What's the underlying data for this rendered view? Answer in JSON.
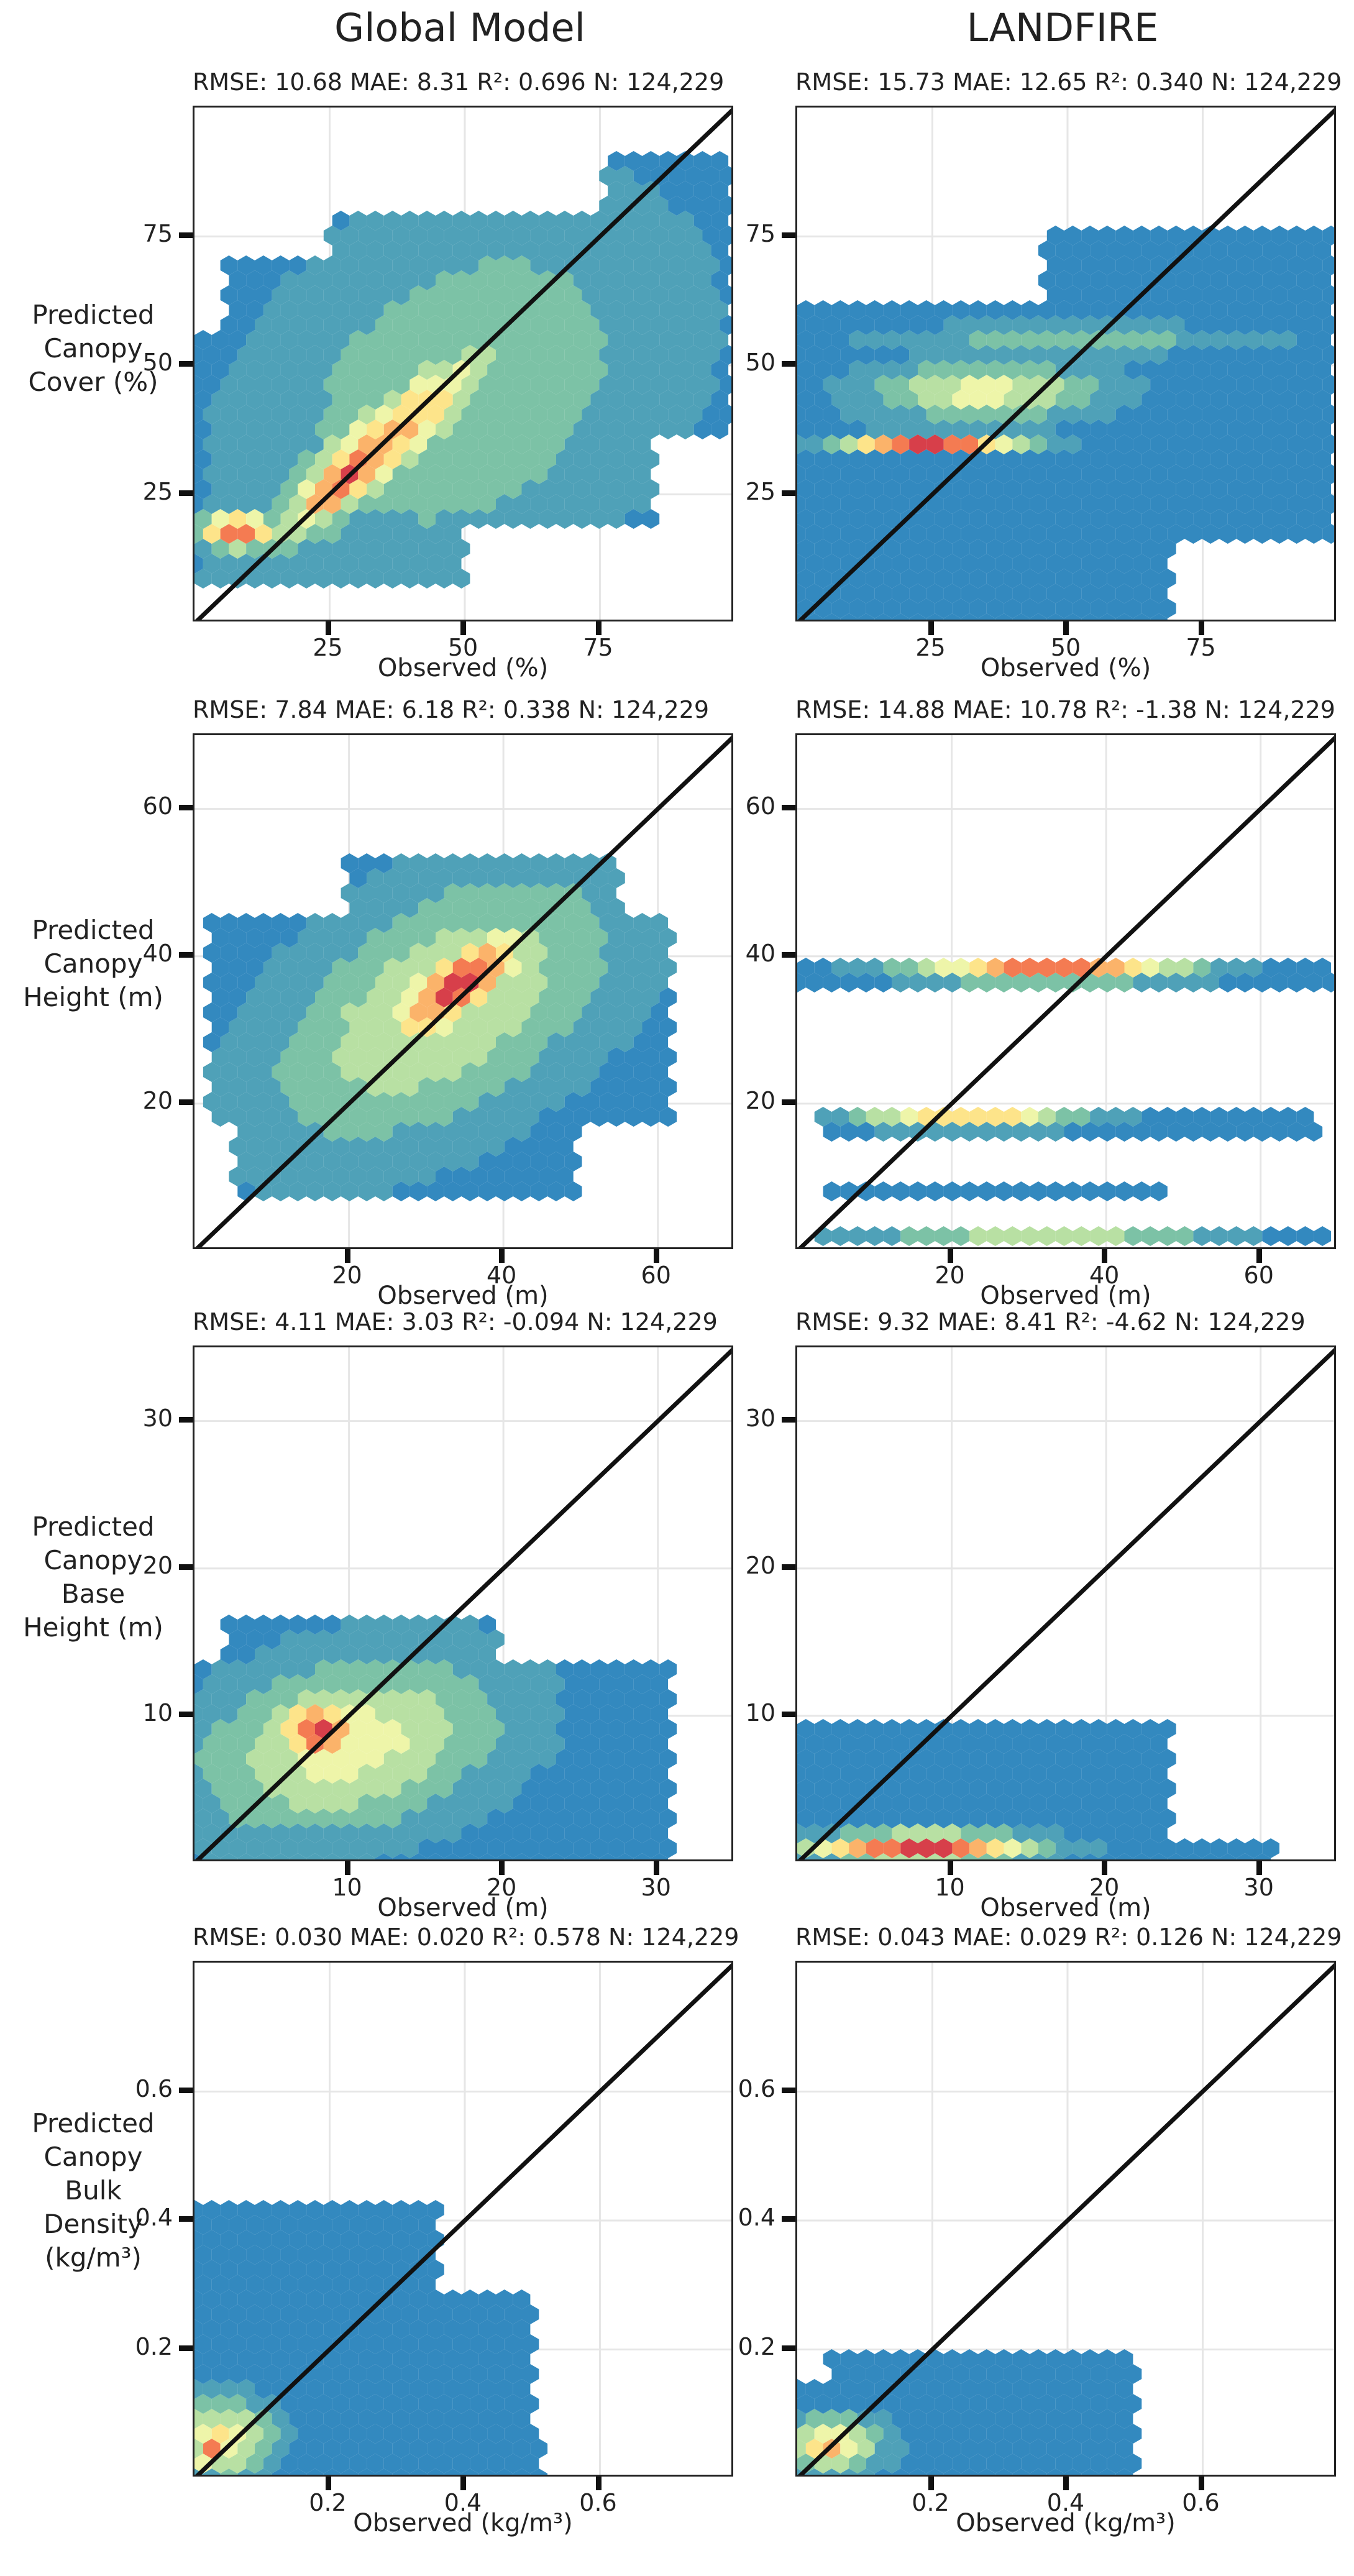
{
  "column_titles": [
    "Global Model",
    "LANDFIRE"
  ],
  "row_labels": [
    [
      "Predicted",
      "Canopy",
      "Cover (%)"
    ],
    [
      "Predicted",
      "Canopy",
      "Height (m)"
    ],
    [
      "Predicted",
      "Canopy",
      "Base",
      "Height (m)"
    ],
    [
      "Predicted",
      "Canopy",
      "Bulk",
      "Density",
      "(kg/m³)"
    ]
  ],
  "colors": {
    "low": "#3389bf",
    "ramp": [
      "#3389bf",
      "#4fa1b8",
      "#7cc2a6",
      "#b8e0a3",
      "#eef5a9",
      "#fde48a",
      "#fbb36a",
      "#f47b52",
      "#d73f4a"
    ],
    "line": "#111111",
    "grid": "#e6e6e6"
  },
  "chart_data": [
    {
      "type": "hexbin",
      "model": "Global Model",
      "variable": "Canopy Cover",
      "stats": "RMSE: 10.68 MAE: 8.31 R²: 0.696 N: 124,229",
      "xlabel": "Observed (%)",
      "xlim": [
        0,
        100
      ],
      "ylim": [
        0,
        100
      ],
      "xticks": [
        25,
        50,
        75
      ],
      "yticks": [
        25,
        50,
        75
      ],
      "xtick_labels": [
        "25",
        "50",
        "75"
      ],
      "ytick_labels": [
        "25",
        "50",
        "75"
      ],
      "blobs": [
        {
          "cx": 50,
          "cy": 45,
          "sx": 30,
          "sy": 22,
          "rot": 40,
          "peak": 0.3
        },
        {
          "cx": 35,
          "cy": 35,
          "sx": 20,
          "sy": 5,
          "rot": 42,
          "peak": 0.75
        },
        {
          "cx": 28,
          "cy": 28,
          "sx": 9,
          "sy": 3,
          "rot": 42,
          "peak": 1.0
        },
        {
          "cx": 8,
          "cy": 18,
          "sx": 5,
          "sy": 2.5,
          "rot": 0,
          "peak": 0.95
        }
      ],
      "extent": [
        {
          "y0": 8,
          "y1": 20,
          "x0": 0,
          "x1": 50
        },
        {
          "y0": 20,
          "y1": 35,
          "x0": 0,
          "x1": 85
        },
        {
          "y0": 35,
          "y1": 55,
          "x0": 0,
          "x1": 100
        },
        {
          "y0": 55,
          "y1": 70,
          "x0": 5,
          "x1": 100
        },
        {
          "y0": 70,
          "y1": 80,
          "x0": 25,
          "x1": 100
        },
        {
          "y0": 80,
          "y1": 90,
          "x0": 75,
          "x1": 100
        }
      ]
    },
    {
      "type": "hexbin",
      "model": "LANDFIRE",
      "variable": "Canopy Cover",
      "stats": "RMSE: 15.73 MAE: 12.65 R²: 0.340 N: 124,229",
      "xlabel": "Observed (%)",
      "xlim": [
        0,
        100
      ],
      "ylim": [
        0,
        100
      ],
      "xticks": [
        25,
        50,
        75
      ],
      "yticks": [
        25,
        50,
        75
      ],
      "xtick_labels": [
        "25",
        "50",
        "75"
      ],
      "ytick_labels": [
        "25",
        "50",
        "75"
      ],
      "blobs": [
        {
          "cx": 25,
          "cy": 35,
          "sx": 12,
          "sy": 1.2,
          "rot": 0,
          "peak": 1.0
        },
        {
          "cx": 35,
          "cy": 45,
          "sx": 15,
          "sy": 4,
          "rot": 0,
          "peak": 0.5
        },
        {
          "cx": 50,
          "cy": 55,
          "sx": 25,
          "sy": 2,
          "rot": 0,
          "peak": 0.25
        }
      ],
      "extent": [
        {
          "y0": 0,
          "y1": 15,
          "x0": 0,
          "x1": 70
        },
        {
          "y0": 15,
          "y1": 40,
          "x0": 0,
          "x1": 100
        },
        {
          "y0": 40,
          "y1": 62,
          "x0": 0,
          "x1": 100
        },
        {
          "y0": 62,
          "y1": 76,
          "x0": 45,
          "x1": 100
        }
      ]
    },
    {
      "type": "hexbin",
      "model": "Global Model",
      "variable": "Canopy Height",
      "stats": "RMSE: 7.84 MAE: 6.18 R²: 0.338 N: 124,229",
      "xlabel": "Observed (m)",
      "xlim": [
        0,
        70
      ],
      "ylim": [
        0,
        70
      ],
      "xticks": [
        20,
        40,
        60
      ],
      "yticks": [
        20,
        40,
        60
      ],
      "xtick_labels": [
        "20",
        "40",
        "60"
      ],
      "ytick_labels": [
        "20",
        "40",
        "60"
      ],
      "blobs": [
        {
          "cx": 32,
          "cy": 33,
          "sx": 18,
          "sy": 10,
          "rot": 35,
          "peak": 0.45
        },
        {
          "cx": 34,
          "cy": 36,
          "sx": 8,
          "sy": 3,
          "rot": 40,
          "peak": 1.0
        }
      ],
      "extent": [
        {
          "y0": 8,
          "y1": 18,
          "x0": 5,
          "x1": 50
        },
        {
          "y0": 18,
          "y1": 45,
          "x0": 2,
          "x1": 62
        },
        {
          "y0": 45,
          "y1": 54,
          "x0": 20,
          "x1": 55
        }
      ]
    },
    {
      "type": "hexbin",
      "model": "LANDFIRE",
      "variable": "Canopy Height",
      "stats": "RMSE: 14.88 MAE: 10.78 R²: -1.38 N: 124,229",
      "xlabel": "Observed (m)",
      "xlim": [
        0,
        70
      ],
      "ylim": [
        0,
        70
      ],
      "xticks": [
        20,
        40,
        60
      ],
      "yticks": [
        20,
        40,
        60
      ],
      "xtick_labels": [
        "20",
        "40",
        "60"
      ],
      "ytick_labels": [
        "20",
        "40",
        "60"
      ],
      "blobs": [
        {
          "cx": 33,
          "cy": 38,
          "sx": 12,
          "sy": 1,
          "rot": 0,
          "peak": 1.0
        },
        {
          "cx": 22,
          "cy": 18,
          "sx": 10,
          "sy": 1,
          "rot": 0,
          "peak": 0.7
        },
        {
          "cx": 32,
          "cy": 2,
          "sx": 15,
          "sy": 1,
          "rot": 0,
          "peak": 0.4
        }
      ],
      "extent": [
        {
          "y0": 35,
          "y1": 40,
          "x0": 0,
          "x1": 70
        },
        {
          "y0": 15,
          "y1": 19,
          "x0": 3,
          "x1": 68
        },
        {
          "y0": 7,
          "y1": 9,
          "x0": 3,
          "x1": 48
        },
        {
          "y0": 1,
          "y1": 3,
          "x0": 3,
          "x1": 70
        }
      ]
    },
    {
      "type": "hexbin",
      "model": "Global Model",
      "variable": "Canopy Base Height",
      "stats": "RMSE: 4.11 MAE: 3.03 R²: -0.094 N: 124,229",
      "xlabel": "Observed (m)",
      "xlim": [
        0,
        35
      ],
      "ylim": [
        0,
        35
      ],
      "xticks": [
        10,
        20,
        30
      ],
      "yticks": [
        10,
        20,
        30
      ],
      "xtick_labels": [
        "10",
        "20",
        "30"
      ],
      "ytick_labels": [
        "10",
        "20",
        "30"
      ],
      "blobs": [
        {
          "cx": 10,
          "cy": 8,
          "sx": 7,
          "sy": 4,
          "rot": 15,
          "peak": 0.5
        },
        {
          "cx": 8,
          "cy": 9,
          "sx": 2,
          "sy": 1.5,
          "rot": 0,
          "peak": 1.0
        }
      ],
      "extent": [
        {
          "y0": 0,
          "y1": 14,
          "x0": 0,
          "x1": 31
        },
        {
          "y0": 14,
          "y1": 17,
          "x0": 2,
          "x1": 20
        }
      ]
    },
    {
      "type": "hexbin",
      "model": "LANDFIRE",
      "variable": "Canopy Base Height",
      "stats": "RMSE: 9.32 MAE: 8.41 R²: -4.62 N: 124,229",
      "xlabel": "Observed (m)",
      "xlim": [
        0,
        35
      ],
      "ylim": [
        0,
        35
      ],
      "xticks": [
        10,
        20,
        30
      ],
      "yticks": [
        10,
        20,
        30
      ],
      "xtick_labels": [
        "10",
        "20",
        "30"
      ],
      "ytick_labels": [
        "10",
        "20",
        "30"
      ],
      "blobs": [
        {
          "cx": 8,
          "cy": 1,
          "sx": 5,
          "sy": 0.7,
          "rot": 0,
          "peak": 1.0
        }
      ],
      "extent": [
        {
          "y0": 0,
          "y1": 2,
          "x0": 0,
          "x1": 31
        },
        {
          "y0": 2,
          "y1": 10,
          "x0": 0,
          "x1": 24
        }
      ]
    },
    {
      "type": "hexbin",
      "model": "Global Model",
      "variable": "Canopy Bulk Density",
      "stats": "RMSE: 0.030 MAE: 0.020 R²: 0.578 N: 124,229",
      "xlabel": "Observed (kg/m³)",
      "xlim": [
        0,
        0.8
      ],
      "ylim": [
        0,
        0.8
      ],
      "xticks": [
        0.2,
        0.4,
        0.6
      ],
      "yticks": [
        0.2,
        0.4,
        0.6
      ],
      "xtick_labels": [
        "0.2",
        "0.4",
        "0.6"
      ],
      "ytick_labels": [
        "0.2",
        "0.4",
        "0.6"
      ],
      "blobs": [
        {
          "cx": 0.04,
          "cy": 0.06,
          "sx": 0.05,
          "sy": 0.04,
          "rot": 0,
          "peak": 0.6
        },
        {
          "cx": 0.02,
          "cy": 0.04,
          "sx": 0.015,
          "sy": 0.015,
          "rot": 0,
          "peak": 1.0
        }
      ],
      "extent": [
        {
          "y0": 0,
          "y1": 0.08,
          "x0": 0,
          "x1": 0.52
        },
        {
          "y0": 0.08,
          "y1": 0.3,
          "x0": 0,
          "x1": 0.5
        },
        {
          "y0": 0.3,
          "y1": 0.42,
          "x0": 0,
          "x1": 0.36
        }
      ]
    },
    {
      "type": "hexbin",
      "model": "LANDFIRE",
      "variable": "Canopy Bulk Density",
      "stats": "RMSE: 0.043 MAE: 0.029 R²: 0.126 N: 124,229",
      "xlabel": "Observed (kg/m³)",
      "xlim": [
        0,
        0.8
      ],
      "ylim": [
        0,
        0.8
      ],
      "xticks": [
        0.2,
        0.4,
        0.6
      ],
      "yticks": [
        0.2,
        0.4,
        0.6
      ],
      "xtick_labels": [
        "0.2",
        "0.4",
        "0.6"
      ],
      "ytick_labels": [
        "0.2",
        "0.4",
        "0.6"
      ],
      "blobs": [
        {
          "cx": 0.05,
          "cy": 0.05,
          "sx": 0.05,
          "sy": 0.03,
          "rot": 0,
          "peak": 0.6
        },
        {
          "cx": 0.04,
          "cy": 0.05,
          "sx": 0.015,
          "sy": 0.015,
          "rot": 0,
          "peak": 1.0
        }
      ],
      "extent": [
        {
          "y0": 0,
          "y1": 0.15,
          "x0": 0,
          "x1": 0.5
        },
        {
          "y0": 0.15,
          "y1": 0.2,
          "x0": 0.05,
          "x1": 0.5
        }
      ]
    }
  ]
}
